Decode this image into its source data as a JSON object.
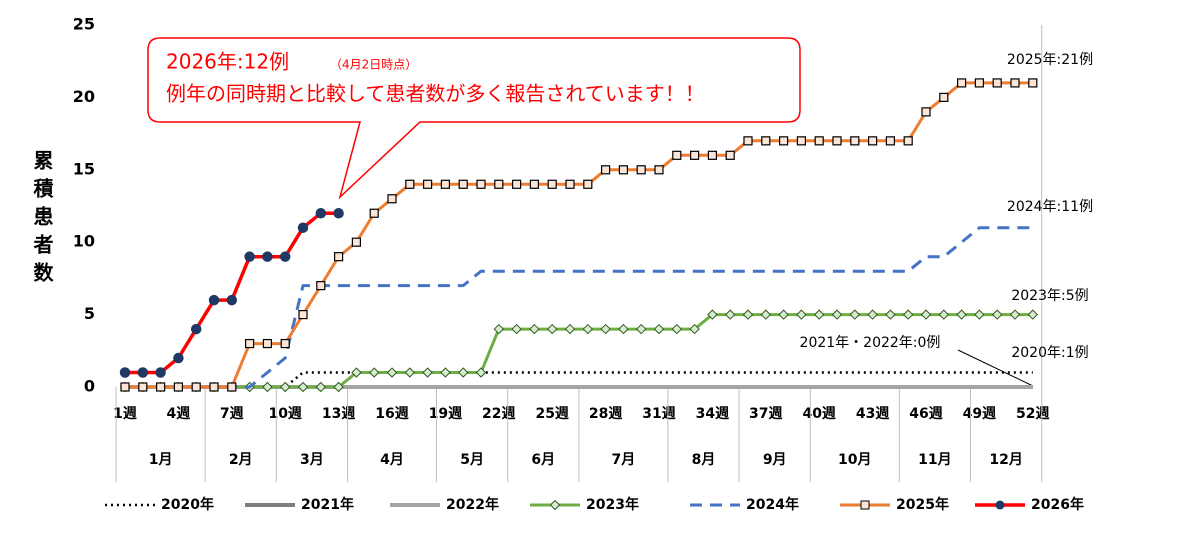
{
  "chart_data": {
    "type": "line",
    "y_label": "累積患者数",
    "categories": [
      "1週",
      null,
      null,
      "4週",
      null,
      null,
      "7週",
      null,
      null,
      "10週",
      null,
      null,
      "13週",
      null,
      null,
      "16週",
      null,
      null,
      "19週",
      null,
      null,
      "22週",
      null,
      null,
      "25週",
      null,
      null,
      "28週",
      null,
      null,
      "31週",
      null,
      null,
      "34週",
      null,
      null,
      "37週",
      null,
      null,
      "40週",
      null,
      null,
      "43週",
      null,
      null,
      "46週",
      null,
      null,
      "49週",
      null,
      null,
      "52週"
    ],
    "x_groups": [
      {
        "label": "1月",
        "weeks": 5
      },
      {
        "label": "2月",
        "weeks": 4
      },
      {
        "label": "3月",
        "weeks": 4
      },
      {
        "label": "4月",
        "weeks": 5
      },
      {
        "label": "5月",
        "weeks": 4
      },
      {
        "label": "6月",
        "weeks": 4
      },
      {
        "label": "7月",
        "weeks": 5
      },
      {
        "label": "8月",
        "weeks": 4
      },
      {
        "label": "9月",
        "weeks": 4
      },
      {
        "label": "10月",
        "weeks": 5
      },
      {
        "label": "11月",
        "weeks": 4
      },
      {
        "label": "12月",
        "weeks": 4
      }
    ],
    "ylim": [
      0,
      25
    ],
    "yticks": [
      0,
      5,
      10,
      15,
      20,
      25
    ],
    "series": [
      {
        "name": "2020年",
        "color": "#000000",
        "width": 2.5,
        "dash": "2 4",
        "marker": null,
        "values": [
          0,
          0,
          0,
          0,
          0,
          0,
          0,
          0,
          0,
          0,
          1,
          1,
          1,
          1,
          1,
          1,
          1,
          1,
          1,
          1,
          1,
          1,
          1,
          1,
          1,
          1,
          1,
          1,
          1,
          1,
          1,
          1,
          1,
          1,
          1,
          1,
          1,
          1,
          1,
          1,
          1,
          1,
          1,
          1,
          1,
          1,
          1,
          1,
          1,
          1,
          1,
          1
        ]
      },
      {
        "name": "2021年",
        "color": "#7f7f7f",
        "width": 4,
        "dash": null,
        "marker": null,
        "values": [
          0,
          0,
          0,
          0,
          0,
          0,
          0,
          0,
          0,
          0,
          0,
          0,
          0,
          0,
          0,
          0,
          0,
          0,
          0,
          0,
          0,
          0,
          0,
          0,
          0,
          0,
          0,
          0,
          0,
          0,
          0,
          0,
          0,
          0,
          0,
          0,
          0,
          0,
          0,
          0,
          0,
          0,
          0,
          0,
          0,
          0,
          0,
          0,
          0,
          0,
          0,
          0
        ]
      },
      {
        "name": "2022年",
        "color": "#a5a5a5",
        "width": 4,
        "dash": null,
        "marker": null,
        "values": [
          0,
          0,
          0,
          0,
          0,
          0,
          0,
          0,
          0,
          0,
          0,
          0,
          0,
          0,
          0,
          0,
          0,
          0,
          0,
          0,
          0,
          0,
          0,
          0,
          0,
          0,
          0,
          0,
          0,
          0,
          0,
          0,
          0,
          0,
          0,
          0,
          0,
          0,
          0,
          0,
          0,
          0,
          0,
          0,
          0,
          0,
          0,
          0,
          0,
          0,
          0,
          0
        ]
      },
      {
        "name": "2023年",
        "color": "#70ad47",
        "width": 3,
        "dash": null,
        "marker": "diamond",
        "marker_color": "#d9ead3",
        "values": [
          0,
          0,
          0,
          0,
          0,
          0,
          0,
          0,
          0,
          0,
          0,
          0,
          0,
          1,
          1,
          1,
          1,
          1,
          1,
          1,
          1,
          4,
          4,
          4,
          4,
          4,
          4,
          4,
          4,
          4,
          4,
          4,
          4,
          5,
          5,
          5,
          5,
          5,
          5,
          5,
          5,
          5,
          5,
          5,
          5,
          5,
          5,
          5,
          5,
          5,
          5,
          5
        ]
      },
      {
        "name": "2024年",
        "color": "#4472c4",
        "width": 3,
        "dash": "12 8",
        "marker": null,
        "values": [
          0,
          0,
          0,
          0,
          0,
          0,
          0,
          0,
          1,
          2,
          7,
          7,
          7,
          7,
          7,
          7,
          7,
          7,
          7,
          7,
          8,
          8,
          8,
          8,
          8,
          8,
          8,
          8,
          8,
          8,
          8,
          8,
          8,
          8,
          8,
          8,
          8,
          8,
          8,
          8,
          8,
          8,
          8,
          8,
          8,
          9,
          9,
          10,
          11,
          11,
          11,
          11
        ]
      },
      {
        "name": "2025年",
        "color": "#ed7d31",
        "width": 3,
        "dash": null,
        "marker": "square",
        "marker_color": "#fbe5d6",
        "values": [
          0,
          0,
          0,
          0,
          0,
          0,
          0,
          3,
          3,
          3,
          5,
          7,
          9,
          10,
          12,
          13,
          14,
          14,
          14,
          14,
          14,
          14,
          14,
          14,
          14,
          14,
          14,
          15,
          15,
          15,
          15,
          16,
          16,
          16,
          16,
          17,
          17,
          17,
          17,
          17,
          17,
          17,
          17,
          17,
          17,
          19,
          20,
          21,
          21,
          21,
          21,
          21
        ]
      },
      {
        "name": "2026年",
        "color": "#ff0000",
        "width": 3.5,
        "dash": null,
        "marker": "circle",
        "marker_color": "#203864",
        "values": [
          1,
          1,
          1,
          2,
          4,
          6,
          6,
          9,
          9,
          9,
          11,
          12,
          12,
          null,
          null,
          null,
          null,
          null,
          null,
          null,
          null,
          null,
          null,
          null,
          null,
          null,
          null,
          null,
          null,
          null,
          null,
          null,
          null,
          null,
          null,
          null,
          null,
          null,
          null,
          null,
          null,
          null,
          null,
          null,
          null,
          null,
          null,
          null,
          null,
          null,
          null,
          null
        ]
      }
    ],
    "callout": {
      "title": "2026年:12例",
      "note": "（4月2日時点）",
      "text": "例年の同時期と比較して患者数が多く報告されています！！"
    },
    "annotations": [
      "2025年:21例",
      "2024年:11例",
      "2023年:5例",
      "2021年・2022年:0例",
      "2020年:1例"
    ]
  }
}
